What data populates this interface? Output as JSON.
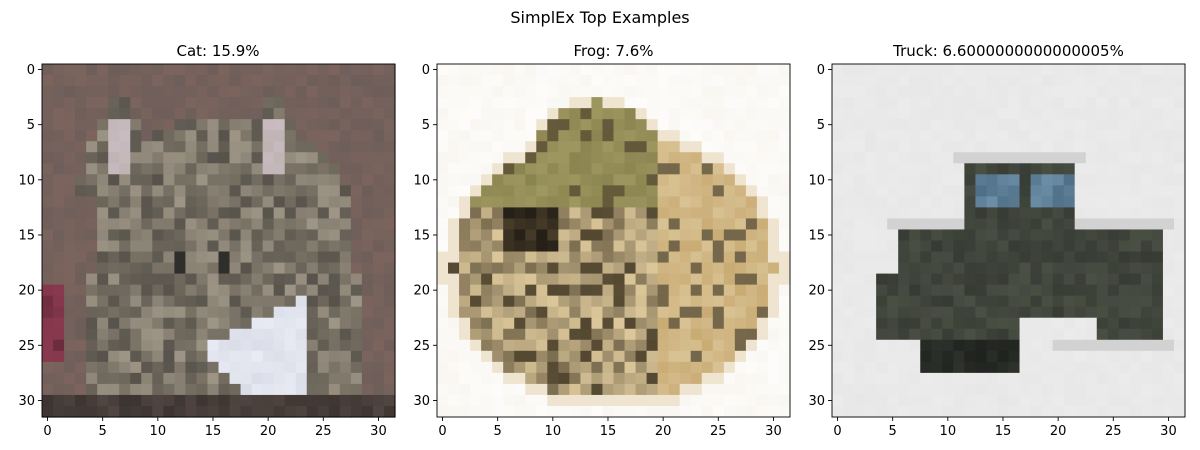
{
  "figure": {
    "title": "SimplEx Top Examples"
  },
  "chart_data": [
    {
      "type": "image",
      "title": "Cat: 15.9%",
      "class_label": "Cat",
      "score_percent": 15.9,
      "image_size": [
        32,
        32
      ],
      "xlim": [
        -0.5,
        31.5
      ],
      "ylim": [
        31.5,
        -0.5
      ],
      "x_ticks": [
        0,
        5,
        10,
        15,
        20,
        25,
        30
      ],
      "y_ticks": [
        0,
        5,
        10,
        15,
        20,
        25,
        30
      ],
      "palette": {
        "background": "#6e5e5a",
        "fur_dark": "#4e4a44",
        "fur_mid": "#7a7366",
        "fur_light": "#a79e8e",
        "ear_inner": "#c9bcc2",
        "chest": "#e9ebf4",
        "accent": "#6a2a3c"
      }
    },
    {
      "type": "image",
      "title": "Frog: 7.6%",
      "class_label": "Frog",
      "score_percent": 7.6,
      "image_size": [
        32,
        32
      ],
      "xlim": [
        -0.5,
        31.5
      ],
      "ylim": [
        31.5,
        -0.5
      ],
      "x_ticks": [
        0,
        5,
        10,
        15,
        20,
        25,
        30
      ],
      "y_ticks": [
        0,
        5,
        10,
        15,
        20,
        25,
        30
      ],
      "palette": {
        "background": "#fdfcfa",
        "body_olive": "#8a8450",
        "body_dark": "#4a3f2a",
        "body_tan": "#c9ab74",
        "body_light": "#dcc79a"
      }
    },
    {
      "type": "image",
      "title": "Truck: 6.6000000000000005%",
      "class_label": "Truck",
      "score_percent": 6.6000000000000005,
      "image_size": [
        32,
        32
      ],
      "xlim": [
        -0.5,
        31.5
      ],
      "ylim": [
        31.5,
        -0.5
      ],
      "x_ticks": [
        0,
        5,
        10,
        15,
        20,
        25,
        30
      ],
      "y_ticks": [
        0,
        5,
        10,
        15,
        20,
        25,
        30
      ],
      "palette": {
        "background": "#ebebeb",
        "body": "#4a4f44",
        "body_dark": "#2e322c",
        "window": "#4f6f86",
        "shadow": "#cfcfcf"
      }
    }
  ]
}
